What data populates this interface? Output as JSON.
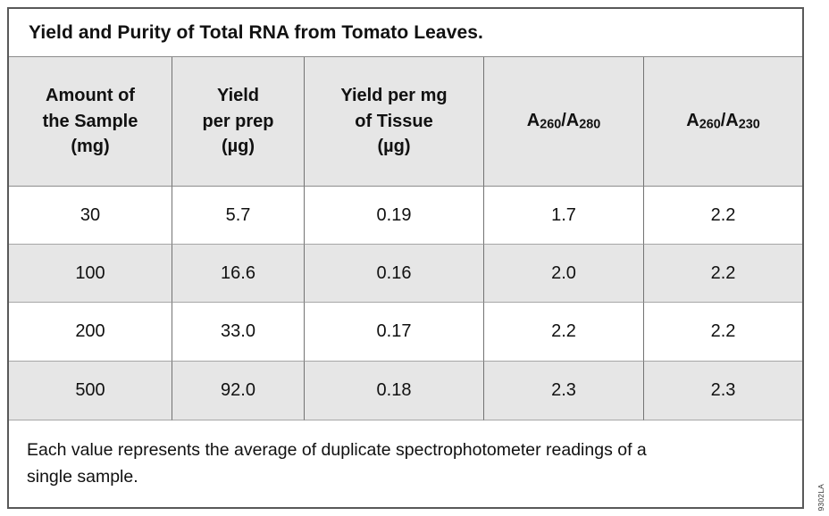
{
  "table": {
    "title": "Yield and Purity of Total RNA from Tomato Leaves.",
    "columns": [
      {
        "name": "amount-of-sample",
        "lines": [
          "Amount of",
          "the Sample",
          "(mg)"
        ]
      },
      {
        "name": "yield-per-prep",
        "lines": [
          "Yield",
          "per prep",
          "(µg)"
        ]
      },
      {
        "name": "yield-per-mg-tissue",
        "lines": [
          "Yield per mg",
          "of Tissue",
          "(µg)"
        ]
      },
      {
        "name": "a260-a280",
        "ratio": {
          "base1": "A",
          "sub1": "260",
          "base2": "/A",
          "sub2": "280"
        }
      },
      {
        "name": "a260-a230",
        "ratio": {
          "base1": "A",
          "sub1": "260",
          "base2": "/A",
          "sub2": "230"
        }
      }
    ],
    "rows": [
      [
        "30",
        "5.7",
        "0.19",
        "1.7",
        "2.2"
      ],
      [
        "100",
        "16.6",
        "0.16",
        "2.0",
        "2.2"
      ],
      [
        "200",
        "33.0",
        "0.17",
        "2.2",
        "2.2"
      ],
      [
        "500",
        "92.0",
        "0.18",
        "2.3",
        "2.3"
      ]
    ],
    "footnote_lines": [
      "Each value represents the average of duplicate spectrophotometer readings of a",
      "single sample."
    ]
  },
  "figure_code": "9302LA",
  "colors": {
    "row_alt_bg": "#e6e6e6",
    "border_outer": "#595959",
    "border_vertical": "#737373",
    "border_horizontal": "#a6a6a6",
    "text": "#111111"
  }
}
